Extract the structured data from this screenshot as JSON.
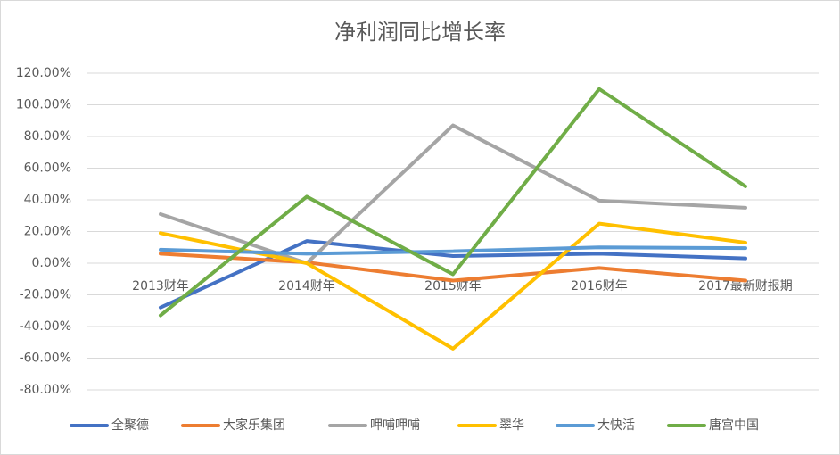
{
  "chart_data": {
    "type": "line",
    "title": "净利润同比增长率",
    "categories": [
      "2013财年",
      "2014财年",
      "2015财年",
      "2016财年",
      "2017最新财报期"
    ],
    "series": [
      {
        "name": "全聚德",
        "color": "#4472c4",
        "values": [
          -28,
          14,
          4.5,
          6,
          3
        ]
      },
      {
        "name": "大家乐集团",
        "color": "#ed7d31",
        "values": [
          6,
          0.5,
          -11,
          -3,
          -11
        ]
      },
      {
        "name": "呷哺呷哺",
        "color": "#a5a5a5",
        "values": [
          31,
          0,
          87,
          39.5,
          35
        ]
      },
      {
        "name": "翠华",
        "color": "#ffc000",
        "values": [
          19,
          0,
          -54,
          25,
          13
        ]
      },
      {
        "name": "大快活",
        "color": "#5b9bd5",
        "values": [
          8.5,
          6,
          7.5,
          10,
          9.5
        ]
      },
      {
        "name": "唐宫中国",
        "color": "#70ad47",
        "values": [
          -33,
          42,
          -7,
          110,
          48.5
        ]
      }
    ],
    "ylim": [
      -80,
      120
    ],
    "yticks": [
      {
        "value": -80,
        "label": "-80.00%"
      },
      {
        "value": -60,
        "label": "-60.00%"
      },
      {
        "value": -40,
        "label": "-40.00%"
      },
      {
        "value": -20,
        "label": "-20.00%"
      },
      {
        "value": 0,
        "label": "0.00%"
      },
      {
        "value": 20,
        "label": "20.00%"
      },
      {
        "value": 40,
        "label": "40.00%"
      },
      {
        "value": 60,
        "label": "60.00%"
      },
      {
        "value": 80,
        "label": "80.00%"
      },
      {
        "value": 100,
        "label": "100.00%"
      },
      {
        "value": 120,
        "label": "120.00%"
      }
    ],
    "grid": true,
    "legend": "bottom"
  }
}
